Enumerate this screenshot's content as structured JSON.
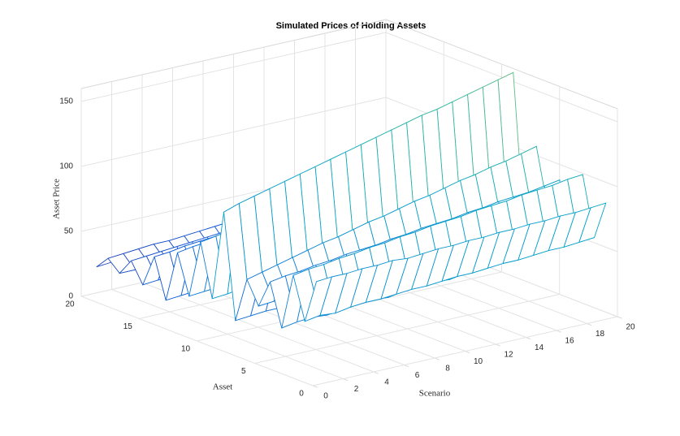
{
  "chart_data": {
    "type": "mesh",
    "title": "Simulated Prices of Holding Assets",
    "xlabel": "Scenario",
    "ylabel": "Asset",
    "zlabel": "Asset Price",
    "x": [
      1,
      2,
      3,
      4,
      5,
      6,
      7,
      8,
      9,
      10,
      11,
      12,
      13,
      14,
      15,
      16,
      17,
      18,
      19,
      20
    ],
    "y": [
      1,
      2,
      3,
      4,
      5,
      6,
      7,
      8,
      9,
      10,
      11,
      12,
      13,
      14,
      15,
      16,
      17,
      18,
      19,
      20
    ],
    "z": [
      [
        74,
        75,
        75,
        76,
        76,
        77,
        76,
        77,
        78,
        78,
        79,
        79,
        80,
        80,
        81,
        81,
        82,
        82,
        83,
        84
      ],
      [
        40,
        42,
        41,
        43,
        44,
        44,
        45,
        46,
        46,
        47,
        48,
        48,
        49,
        50,
        50,
        51,
        52,
        52,
        53,
        54
      ],
      [
        72,
        74,
        75,
        77,
        78,
        80,
        81,
        83,
        84,
        86,
        87,
        88,
        90,
        91,
        92,
        94,
        95,
        96,
        98,
        99
      ],
      [
        28,
        30,
        31,
        30,
        32,
        33,
        34,
        33,
        35,
        36,
        37,
        36,
        38,
        39,
        40,
        40,
        41,
        42,
        43,
        44
      ],
      [
        60,
        62,
        63,
        65,
        66,
        68,
        69,
        70,
        72,
        73,
        75,
        76,
        77,
        79,
        80,
        82,
        83,
        84,
        86,
        88
      ],
      [
        38,
        39,
        41,
        42,
        43,
        44,
        46,
        47,
        48,
        49,
        51,
        52,
        53,
        54,
        56,
        57,
        58,
        59,
        61,
        62
      ],
      [
        55,
        58,
        61,
        64,
        67,
        70,
        72,
        75,
        78,
        80,
        83,
        86,
        88,
        91,
        94,
        96,
        99,
        101,
        104,
        107
      ],
      [
        20,
        21,
        22,
        22,
        23,
        24,
        25,
        25,
        26,
        27,
        28,
        28,
        29,
        30,
        31,
        31,
        32,
        33,
        34,
        35
      ],
      [
        100,
        104,
        107,
        110,
        113,
        116,
        119,
        122,
        125,
        128,
        131,
        134,
        137,
        140,
        142,
        145,
        148,
        151,
        154,
        157
      ],
      [
        30,
        31,
        33,
        34,
        35,
        37,
        38,
        39,
        41,
        42,
        43,
        45,
        46,
        47,
        49,
        50,
        51,
        53,
        54,
        55
      ],
      [
        70,
        72,
        74,
        76,
        78,
        80,
        81,
        83,
        85,
        87,
        89,
        90,
        92,
        94,
        96,
        98,
        99,
        101,
        103,
        105
      ],
      [
        25,
        26,
        27,
        28,
        28,
        29,
        30,
        31,
        32,
        32,
        33,
        34,
        35,
        36,
        36,
        37,
        38,
        39,
        40,
        40
      ],
      [
        55,
        57,
        58,
        60,
        61,
        63,
        64,
        66,
        67,
        69,
        70,
        72,
        73,
        75,
        76,
        78,
        79,
        81,
        82,
        84
      ],
      [
        15,
        16,
        17,
        17,
        18,
        19,
        20,
        20,
        21,
        22,
        23,
        23,
        24,
        25,
        26,
        26,
        27,
        28,
        29,
        29
      ],
      [
        45,
        46,
        48,
        49,
        50,
        52,
        53,
        54,
        56,
        57,
        58,
        60,
        61,
        62,
        64,
        65,
        66,
        68,
        69,
        70
      ],
      [
        20,
        21,
        21,
        22,
        23,
        23,
        24,
        25,
        25,
        26,
        27,
        27,
        28,
        29,
        29,
        30,
        31,
        31,
        32,
        33
      ],
      [
        35,
        36,
        37,
        38,
        39,
        40,
        41,
        42,
        43,
        44,
        45,
        46,
        47,
        48,
        49,
        50,
        51,
        52,
        53,
        54
      ],
      [
        22,
        22,
        23,
        24,
        24,
        25,
        26,
        26,
        27,
        28,
        28,
        29,
        30,
        30,
        31,
        32,
        32,
        33,
        34,
        34
      ],
      [
        30,
        31,
        32,
        33,
        33,
        34,
        35,
        36,
        37,
        37,
        38,
        39,
        40,
        41,
        41,
        42,
        43,
        44,
        45,
        45
      ],
      [
        20,
        21,
        21,
        22,
        22,
        23,
        23,
        24,
        24,
        25,
        25,
        26,
        26,
        27,
        27,
        28,
        28,
        29,
        29,
        30
      ]
    ],
    "xlim": [
      0,
      20
    ],
    "ylim": [
      0,
      20
    ],
    "zlim": [
      0,
      160
    ],
    "xticks": [
      0,
      2,
      4,
      6,
      8,
      10,
      12,
      14,
      16,
      18,
      20
    ],
    "yticks": [
      0,
      5,
      10,
      15,
      20
    ],
    "zticks": [
      0,
      50,
      100,
      150
    ],
    "grid": true,
    "colormap": [
      "#352a87",
      "#0f5cdd",
      "#1481d6",
      "#06a4ca",
      "#2eb7a4",
      "#87bf77",
      "#d1bb59",
      "#fec832",
      "#f9fb0e"
    ]
  }
}
